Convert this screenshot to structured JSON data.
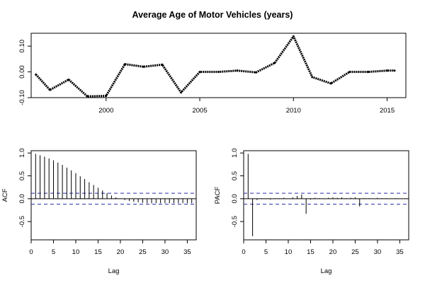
{
  "chart_data": [
    {
      "type": "line",
      "title": "Average Age of Motor Vehicles (years)",
      "xlabel": "",
      "ylabel": "",
      "xlim": [
        1996,
        2016
      ],
      "ylim": [
        -0.1,
        0.15
      ],
      "x_ticks": [
        2000,
        2005,
        2010,
        2015
      ],
      "y_ticks": [
        -0.1,
        0.0,
        0.1
      ],
      "y_tick_labels": [
        "-0.10",
        "0.00",
        "0.10"
      ],
      "x": [
        1996.25,
        1997,
        1998,
        1999,
        2000,
        2001,
        2002,
        2003,
        2004,
        2005,
        2006,
        2007,
        2008,
        2009,
        2010,
        2011,
        2012,
        2013,
        2014,
        2015,
        2015.4
      ],
      "values": [
        -0.01,
        -0.07,
        -0.03,
        -0.095,
        -0.093,
        0.03,
        0.02,
        0.028,
        -0.08,
        0.0,
        0.0,
        0.005,
        -0.002,
        0.035,
        0.138,
        -0.02,
        -0.045,
        0.0,
        0.0,
        0.005,
        0.005
      ]
    },
    {
      "type": "bar",
      "xlabel": "Lag",
      "ylabel": "ACF",
      "xlim": [
        0,
        37
      ],
      "ylim": [
        -0.9,
        1.05
      ],
      "x_ticks": [
        0,
        5,
        10,
        15,
        20,
        25,
        30,
        35
      ],
      "y_ticks": [
        -0.5,
        0.0,
        0.5,
        1.0
      ],
      "y_tick_labels": [
        "-0.5",
        "0.0",
        "0.5",
        "1.0"
      ],
      "confidence_band": [
        -0.12,
        0.12
      ],
      "lags": [
        1,
        2,
        3,
        4,
        5,
        6,
        7,
        8,
        9,
        10,
        11,
        12,
        13,
        14,
        15,
        16,
        17,
        18,
        19,
        20,
        21,
        22,
        23,
        24,
        25,
        26,
        27,
        28,
        29,
        30,
        31,
        32,
        33,
        34,
        35,
        36
      ],
      "values": [
        0.98,
        0.95,
        0.92,
        0.88,
        0.84,
        0.79,
        0.74,
        0.68,
        0.62,
        0.56,
        0.49,
        0.43,
        0.36,
        0.3,
        0.24,
        0.18,
        0.12,
        0.07,
        0.03,
        0.0,
        -0.03,
        -0.05,
        -0.07,
        -0.08,
        -0.09,
        -0.1,
        -0.1,
        -0.1,
        -0.1,
        -0.1,
        -0.1,
        -0.1,
        -0.1,
        -0.1,
        -0.1,
        -0.1
      ]
    },
    {
      "type": "bar",
      "xlabel": "Lag",
      "ylabel": "PACF",
      "xlim": [
        0,
        37
      ],
      "ylim": [
        -0.9,
        1.05
      ],
      "x_ticks": [
        0,
        5,
        10,
        15,
        20,
        25,
        30,
        35
      ],
      "y_ticks": [
        -0.5,
        0.0,
        0.5,
        1.0
      ],
      "y_tick_labels": [
        "-0.5",
        "0.0",
        "0.5",
        "1.0"
      ],
      "confidence_band": [
        -0.12,
        0.12
      ],
      "lags": [
        1,
        2,
        3,
        4,
        5,
        6,
        7,
        8,
        9,
        10,
        11,
        12,
        13,
        14,
        15,
        16,
        17,
        18,
        19,
        20,
        21,
        22,
        23,
        24,
        25,
        26,
        27,
        28,
        29,
        30,
        31,
        32,
        33,
        34,
        35,
        36
      ],
      "values": [
        0.98,
        -0.82,
        -0.03,
        0.01,
        -0.01,
        -0.02,
        0.01,
        -0.01,
        0.02,
        0.0,
        0.03,
        0.06,
        0.09,
        -0.33,
        -0.02,
        0.02,
        0.01,
        -0.01,
        0.02,
        0.03,
        0.02,
        0.03,
        0.01,
        0.02,
        0.03,
        -0.17,
        0.01,
        0.01,
        0.0,
        0.02,
        0.01,
        0.01,
        0.0,
        0.01,
        0.0,
        0.0
      ]
    }
  ]
}
